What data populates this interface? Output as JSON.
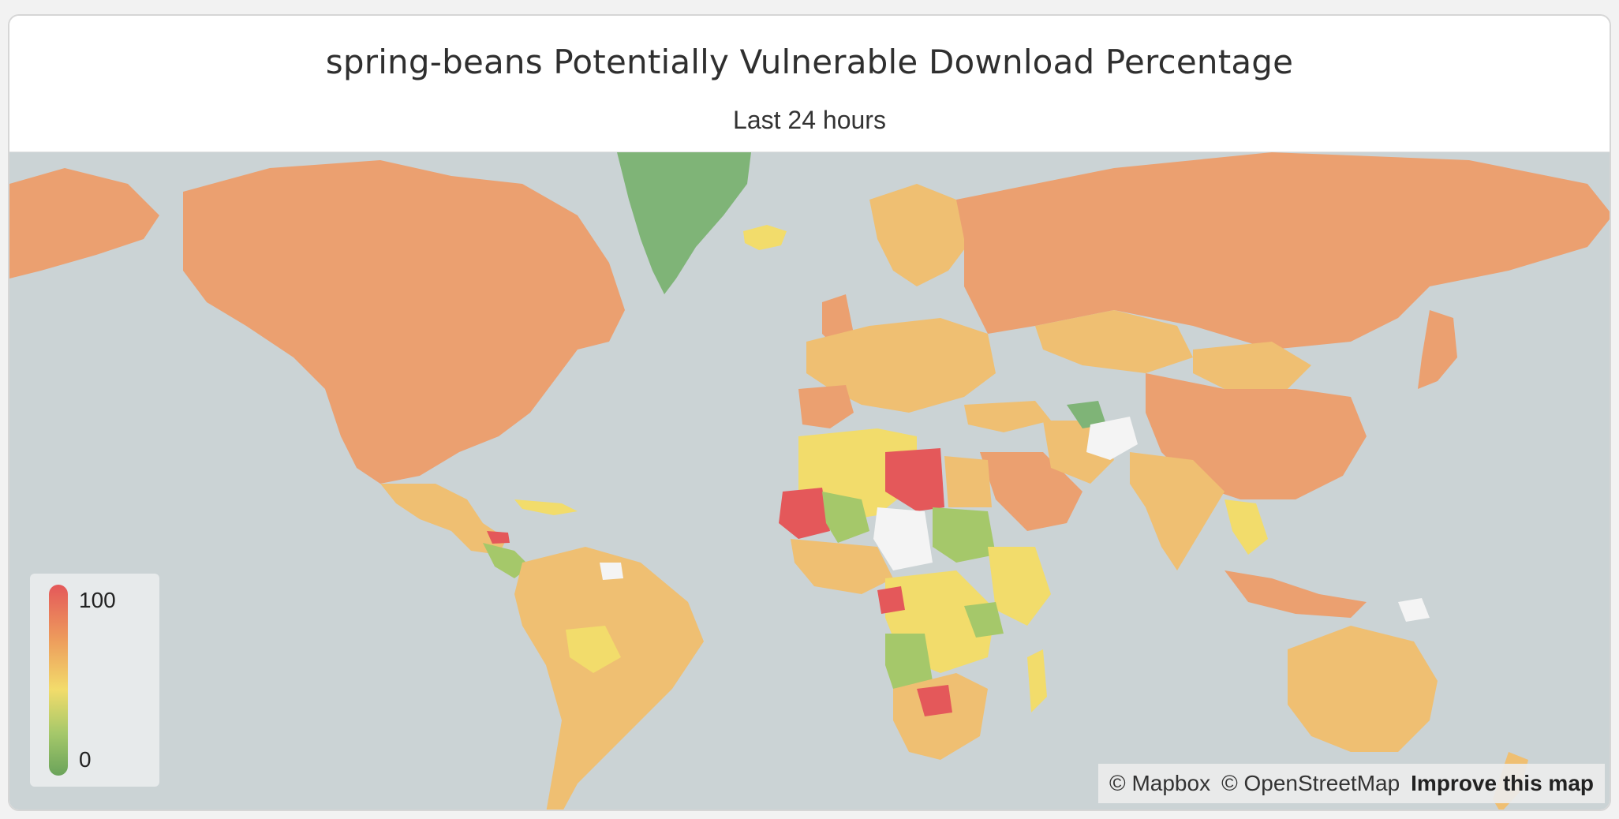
{
  "panel": {
    "title": "spring-beans Potentially Vulnerable Download Percentage",
    "subtitle": "Last 24 hours"
  },
  "legend": {
    "max_label": "100",
    "min_label": "0",
    "scale_colors": [
      "#e4585a",
      "#ed9a5c",
      "#f2dc6b",
      "#a5c86a",
      "#6aa35a"
    ]
  },
  "attribution": {
    "mapbox": "© Mapbox",
    "osm": "© OpenStreetMap",
    "improve": "Improve this map"
  },
  "colors": {
    "ocean": "#cbd3d5",
    "high": "#e4585a",
    "mid_high": "#eba070",
    "mid": "#efbf72",
    "low_mid": "#f2dc6b",
    "low": "#a5c86a",
    "very_low": "#7fb477",
    "no_data": "#f4f4f4"
  }
}
